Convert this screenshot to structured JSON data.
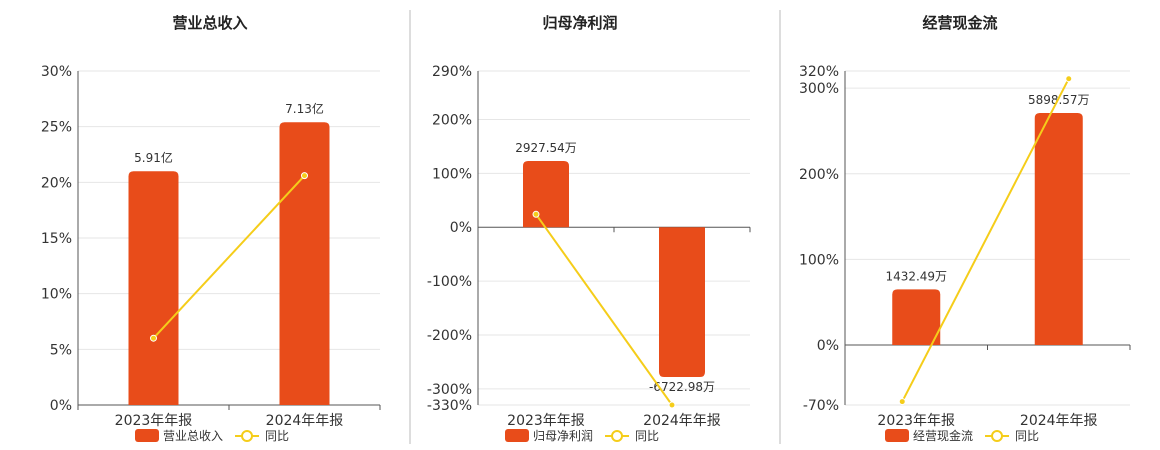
{
  "chart_data": [
    {
      "type": "bar",
      "title": "营业总收入",
      "categories": [
        "2023年年报",
        "2024年年报"
      ],
      "ylim": [
        0,
        30
      ],
      "yticks": [
        0,
        5,
        10,
        15,
        20,
        25,
        30
      ],
      "ytick_labels": [
        "0%",
        "5%",
        "10%",
        "15%",
        "20%",
        "25%",
        "30%"
      ],
      "series": [
        {
          "name": "营业总收入",
          "type": "bar",
          "values": [
            21.0,
            25.4
          ],
          "labels": [
            "5.91亿",
            "7.13亿"
          ],
          "color": "#e84c1a"
        },
        {
          "name": "同比",
          "type": "line",
          "values": [
            6.0,
            20.6
          ],
          "color": "#f5cd1a"
        }
      ],
      "legend": "bottom"
    },
    {
      "type": "bar",
      "title": "归母净利润",
      "categories": [
        "2023年年报",
        "2024年年报"
      ],
      "ylim": [
        -330,
        290
      ],
      "yticks": [
        -330,
        -300,
        -200,
        -100,
        0,
        100,
        200,
        290
      ],
      "ytick_labels": [
        "-330%",
        "-300%",
        "-200%",
        "-100%",
        "0%",
        "100%",
        "200%",
        "290%"
      ],
      "series": [
        {
          "name": "归母净利润",
          "type": "bar",
          "values": [
            123,
            -278
          ],
          "labels": [
            "2927.54万",
            "-6722.98万"
          ],
          "color": "#e84c1a"
        },
        {
          "name": "同比",
          "type": "line",
          "values": [
            24,
            -330
          ],
          "color": "#f5cd1a"
        }
      ],
      "legend": "bottom"
    },
    {
      "type": "bar",
      "title": "经营现金流",
      "categories": [
        "2023年年报",
        "2024年年报"
      ],
      "ylim": [
        -70,
        320
      ],
      "yticks": [
        -70,
        0,
        100,
        200,
        300,
        320
      ],
      "ytick_labels": [
        "-70%",
        "0%",
        "100%",
        "200%",
        "300%",
        "320%"
      ],
      "series": [
        {
          "name": "经营现金流",
          "type": "bar",
          "values": [
            65,
            271
          ],
          "labels": [
            "1432.49万",
            "5898.57万"
          ],
          "color": "#e84c1a"
        },
        {
          "name": "同比",
          "type": "line",
          "values": [
            -66,
            311
          ],
          "color": "#f5cd1a"
        }
      ],
      "legend": "bottom"
    }
  ]
}
